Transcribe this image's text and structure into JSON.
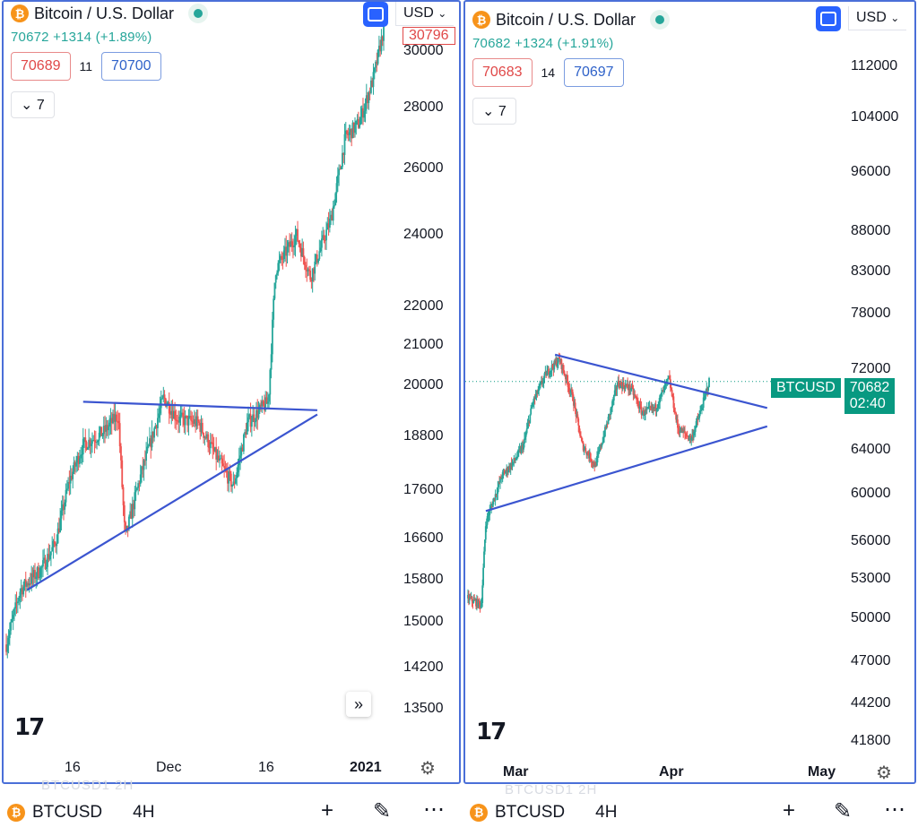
{
  "colors": {
    "up": "#26a69a",
    "down": "#ef5350",
    "trend": "#3b55d0",
    "accent": "#2962ff",
    "tag": "#089981",
    "border": "#4a6fd8"
  },
  "left": {
    "title": "Bitcoin / U.S. Dollar",
    "quote": "70672  +1314 (+1.89%)",
    "sell": "70689",
    "spread": "11",
    "buy": "70700",
    "indicator": "7",
    "currency": "USD",
    "high_tag": "30796",
    "y_ticks": [
      "30000",
      "28000",
      "26000",
      "24000",
      "22000",
      "21000",
      "20000",
      "18800",
      "17600",
      "16600",
      "15800",
      "15000",
      "14200",
      "13500"
    ],
    "x_ticks": [
      "16",
      "Dec",
      "16",
      "2021"
    ],
    "icons": {
      "fullscreen": "fullscreen-icon",
      "settings": "gear-icon",
      "scroll": "double-chevron-right-icon",
      "logo": "tradingview-logo-icon"
    }
  },
  "right": {
    "title": "Bitcoin / U.S. Dollar",
    "quote": "70682  +1324 (+1.91%)",
    "sell": "70683",
    "spread": "14",
    "buy": "70697",
    "indicator": "7",
    "currency": "USD",
    "price_symbol": "BTCUSD",
    "price_value": "70682",
    "countdown": "02:40",
    "y_ticks": [
      "112000",
      "104000",
      "96000",
      "88000",
      "83000",
      "78000",
      "72000",
      "64000",
      "60000",
      "56000",
      "53000",
      "50000",
      "47000",
      "44200",
      "41800"
    ],
    "x_ticks": [
      "Mar",
      "Apr",
      "May"
    ]
  },
  "bottom_left": {
    "symbol": "BTCUSD",
    "timeframe": "4H",
    "ghost": "BTCUSD1   2H"
  },
  "bottom_right": {
    "symbol": "BTCUSD",
    "timeframe": "4H",
    "ghost": "BTCUSD1   2H"
  },
  "chart_data": [
    {
      "type": "candlestick",
      "title": "Bitcoin / U.S. Dollar",
      "symbol": "BTCUSD",
      "timeframe": "4H",
      "xlabel": "",
      "ylabel": "USD",
      "x_ticks": [
        "16",
        "Dec",
        "16",
        "2021"
      ],
      "ylim": [
        13200,
        31500
      ],
      "y_scale": "log",
      "price_path": [
        [
          "Nov 9",
          14600
        ],
        [
          "Nov 11",
          15600
        ],
        [
          "Nov 14",
          16000
        ],
        [
          "Nov 16",
          16500
        ],
        [
          "Nov 18",
          17800
        ],
        [
          "Nov 20",
          18600
        ],
        [
          "Nov 23",
          18900
        ],
        [
          "Nov 25",
          19300
        ],
        [
          "Nov 26",
          16600
        ],
        [
          "Nov 28",
          17800
        ],
        [
          "Dec 1",
          19700
        ],
        [
          "Dec 3",
          19200
        ],
        [
          "Dec 6",
          19100
        ],
        [
          "Dec 9",
          18200
        ],
        [
          "Dec 11",
          17700
        ],
        [
          "Dec 13",
          19100
        ],
        [
          "Dec 16",
          19600
        ],
        [
          "Dec 17",
          23000
        ],
        [
          "Dec 20",
          24000
        ],
        [
          "Dec 22",
          22800
        ],
        [
          "Dec 25",
          24500
        ],
        [
          "Dec 27",
          27000
        ],
        [
          "Dec 29",
          27500
        ],
        [
          "Dec 31",
          29000
        ],
        [
          "Jan 2",
          30800
        ]
      ],
      "annotations": [
        {
          "type": "trendline",
          "label": "triangle resistance",
          "from": [
            "Nov 20",
            19600
          ],
          "to": [
            "Dec 23",
            19400
          ]
        },
        {
          "type": "trendline",
          "label": "triangle support",
          "from": [
            "Nov 12",
            15600
          ],
          "to": [
            "Dec 23",
            19300
          ]
        }
      ]
    },
    {
      "type": "candlestick",
      "title": "Bitcoin / U.S. Dollar",
      "symbol": "BTCUSD",
      "timeframe": "4H",
      "xlabel": "",
      "ylabel": "USD",
      "x_ticks": [
        "Mar",
        "Apr",
        "May"
      ],
      "ylim": [
        41000,
        118000
      ],
      "y_scale": "log",
      "last_price": 70682,
      "price_path": [
        [
          "Feb 24",
          51500
        ],
        [
          "Feb 27",
          51000
        ],
        [
          "Feb 28",
          57500
        ],
        [
          "Mar 1",
          61500
        ],
        [
          "Mar 4",
          63000
        ],
        [
          "Mar 6",
          64500
        ],
        [
          "Mar 8",
          68500
        ],
        [
          "Mar 11",
          71500
        ],
        [
          "Mar 14",
          73000
        ],
        [
          "Mar 17",
          69000
        ],
        [
          "Mar 19",
          64500
        ],
        [
          "Mar 22",
          62500
        ],
        [
          "Mar 25",
          67000
        ],
        [
          "Mar 27",
          70500
        ],
        [
          "Mar 30",
          70000
        ],
        [
          "Apr 2",
          67500
        ],
        [
          "Apr 5",
          68000
        ],
        [
          "Apr 8",
          71000
        ],
        [
          "Apr 10",
          66000
        ],
        [
          "Apr 13",
          65000
        ],
        [
          "Apr 15",
          67500
        ],
        [
          "Apr 17",
          70682
        ]
      ],
      "annotations": [
        {
          "type": "trendline",
          "label": "triangle resistance",
          "from": [
            "Mar 13",
            73500
          ],
          "to": [
            "Apr 30",
            68000
          ]
        },
        {
          "type": "trendline",
          "label": "triangle support",
          "from": [
            "Feb 28",
            58500
          ],
          "to": [
            "Apr 30",
            66200
          ]
        }
      ]
    }
  ]
}
